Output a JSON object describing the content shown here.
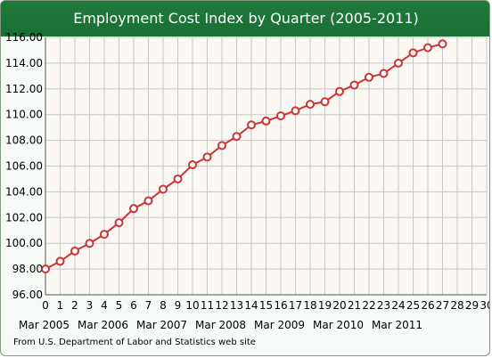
{
  "chart_data": {
    "type": "line",
    "title": "Employment Cost Index by Quarter (2005-2011)",
    "x_ticks": [
      0,
      1,
      2,
      3,
      4,
      5,
      6,
      7,
      8,
      9,
      10,
      11,
      12,
      13,
      14,
      15,
      16,
      17,
      18,
      19,
      20,
      21,
      22,
      23,
      24,
      25,
      26,
      27,
      28,
      29,
      30
    ],
    "x_date_labels": [
      {
        "x": 0,
        "label": "Mar 2005"
      },
      {
        "x": 4,
        "label": "Mar 2006"
      },
      {
        "x": 8,
        "label": "Mar 2007"
      },
      {
        "x": 12,
        "label": "Mar 2008"
      },
      {
        "x": 16,
        "label": "Mar 2009"
      },
      {
        "x": 20,
        "label": "Mar 2010"
      },
      {
        "x": 24,
        "label": "Mar 2011"
      }
    ],
    "y_ticks": [
      "96.00",
      "98.00",
      "100.00",
      "102.00",
      "104.00",
      "106.00",
      "108.00",
      "110.00",
      "112.00",
      "114.00",
      "116.00"
    ],
    "xlim": [
      0,
      30
    ],
    "ylim": [
      96,
      116
    ],
    "grid": true,
    "series": [
      {
        "color": "#cc3333",
        "x": [
          0,
          1,
          2,
          3,
          4,
          5,
          6,
          7,
          8,
          9,
          10,
          11,
          12,
          13,
          14,
          15,
          16,
          17,
          18,
          19,
          20,
          21,
          22,
          23,
          24,
          25,
          26,
          27
        ],
        "values": [
          98.0,
          98.6,
          99.4,
          100.0,
          100.7,
          101.6,
          102.7,
          103.3,
          104.2,
          105.0,
          106.1,
          106.7,
          107.6,
          108.3,
          109.2,
          109.5,
          109.9,
          110.3,
          110.8,
          111.0,
          111.8,
          112.3,
          112.9,
          113.2,
          114.0,
          114.8,
          115.2,
          115.5
        ]
      }
    ]
  },
  "footer": {
    "source": "From U.S. Department of Labor and Statistics web site"
  }
}
